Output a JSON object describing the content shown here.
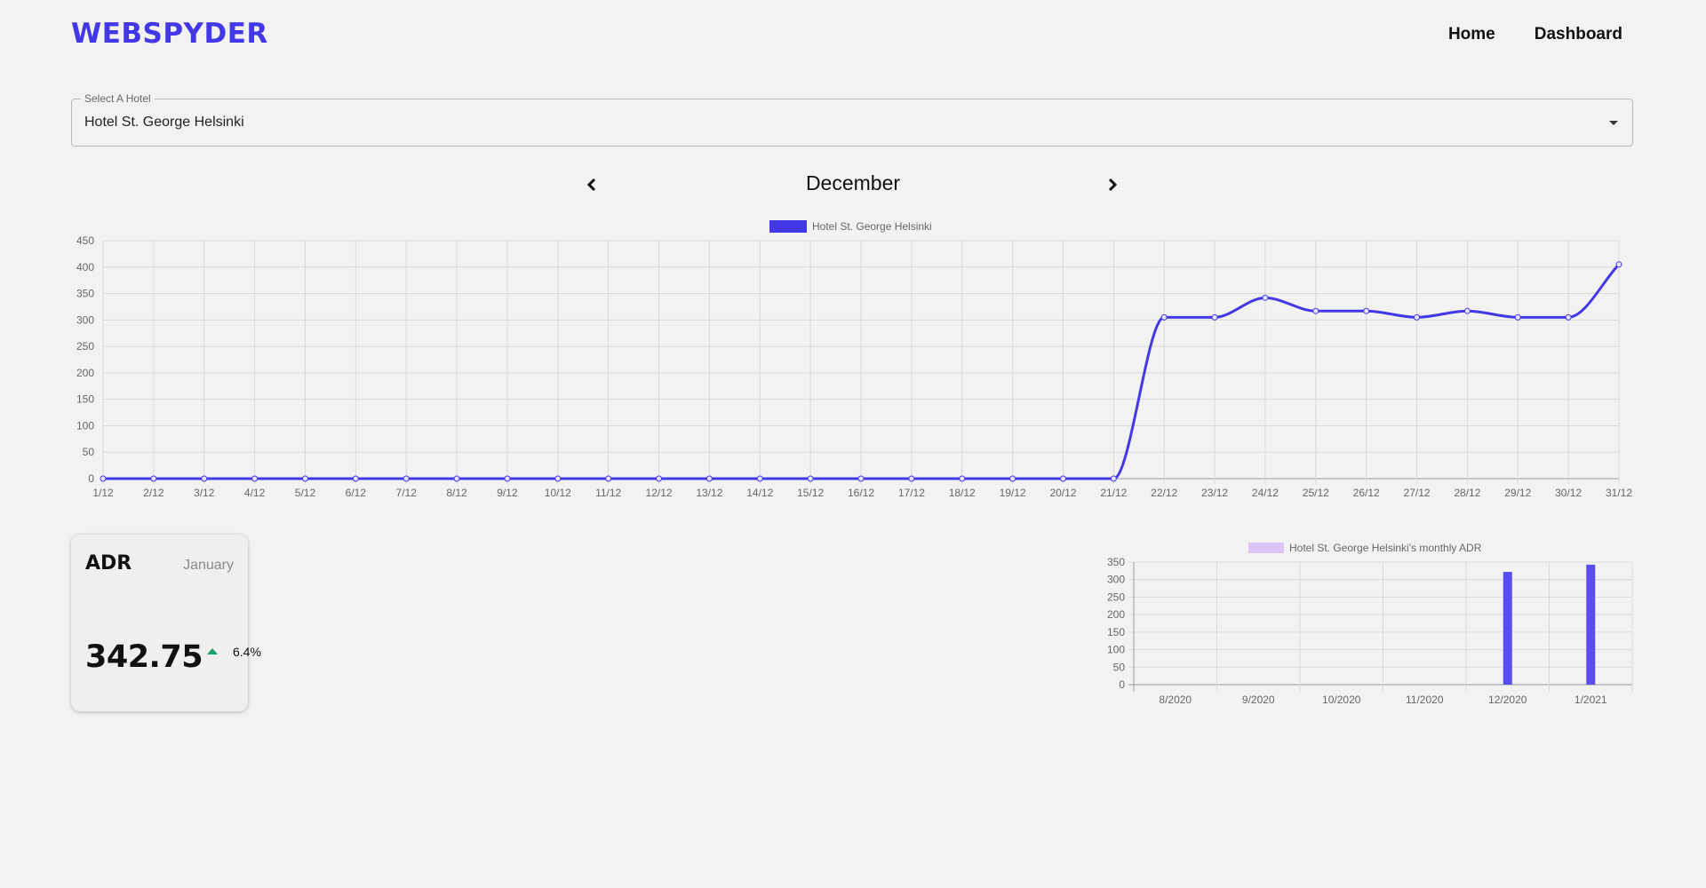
{
  "header": {
    "brand": "WEBSPYDER",
    "nav": [
      {
        "label": "Home"
      },
      {
        "label": "Dashboard"
      }
    ]
  },
  "hotel_select": {
    "label": "Select A Hotel",
    "value": "Hotel St. George Helsinki"
  },
  "month_nav": {
    "month": "December"
  },
  "colors": {
    "brand": "#4338e8",
    "line": "#4338e8",
    "bar": "#5b4cf0",
    "bar_legend": "#dcc4f5",
    "up": "#1a9e6a"
  },
  "adr_card": {
    "title": "ADR",
    "month": "January",
    "value": "342.75",
    "change": "6.4%",
    "trend_icon": "arrow-up-icon"
  },
  "chart_data": [
    {
      "type": "line",
      "legend": "Hotel St. George Helsinki",
      "legend_position": "top",
      "grid": true,
      "ylim": [
        0,
        450
      ],
      "yticks": [
        0,
        50,
        100,
        150,
        200,
        250,
        300,
        350,
        400,
        450
      ],
      "x": [
        "1/12",
        "2/12",
        "3/12",
        "4/12",
        "5/12",
        "6/12",
        "7/12",
        "8/12",
        "9/12",
        "10/12",
        "11/12",
        "12/12",
        "13/12",
        "14/12",
        "15/12",
        "16/12",
        "17/12",
        "18/12",
        "19/12",
        "20/12",
        "21/12",
        "22/12",
        "23/12",
        "24/12",
        "25/12",
        "26/12",
        "27/12",
        "28/12",
        "29/12",
        "30/12",
        "31/12"
      ],
      "series": [
        {
          "name": "Hotel St. George Helsinki",
          "values": [
            0,
            0,
            0,
            0,
            0,
            0,
            0,
            0,
            0,
            0,
            0,
            0,
            0,
            0,
            0,
            0,
            0,
            0,
            0,
            0,
            0,
            305,
            305,
            342,
            317,
            317,
            305,
            317,
            305,
            305,
            405
          ]
        }
      ]
    },
    {
      "type": "bar",
      "legend": "Hotel St. George Helsinki's monthly ADR",
      "legend_position": "top",
      "grid": true,
      "ylim": [
        0,
        350
      ],
      "yticks": [
        0,
        50,
        100,
        150,
        200,
        250,
        300,
        350
      ],
      "categories": [
        "8/2020",
        "9/2020",
        "10/2020",
        "11/2020",
        "12/2020",
        "1/2021"
      ],
      "series": [
        {
          "name": "Hotel St. George Helsinki's monthly ADR",
          "values": [
            0,
            0,
            0,
            0,
            322,
            342.75
          ]
        }
      ]
    }
  ]
}
